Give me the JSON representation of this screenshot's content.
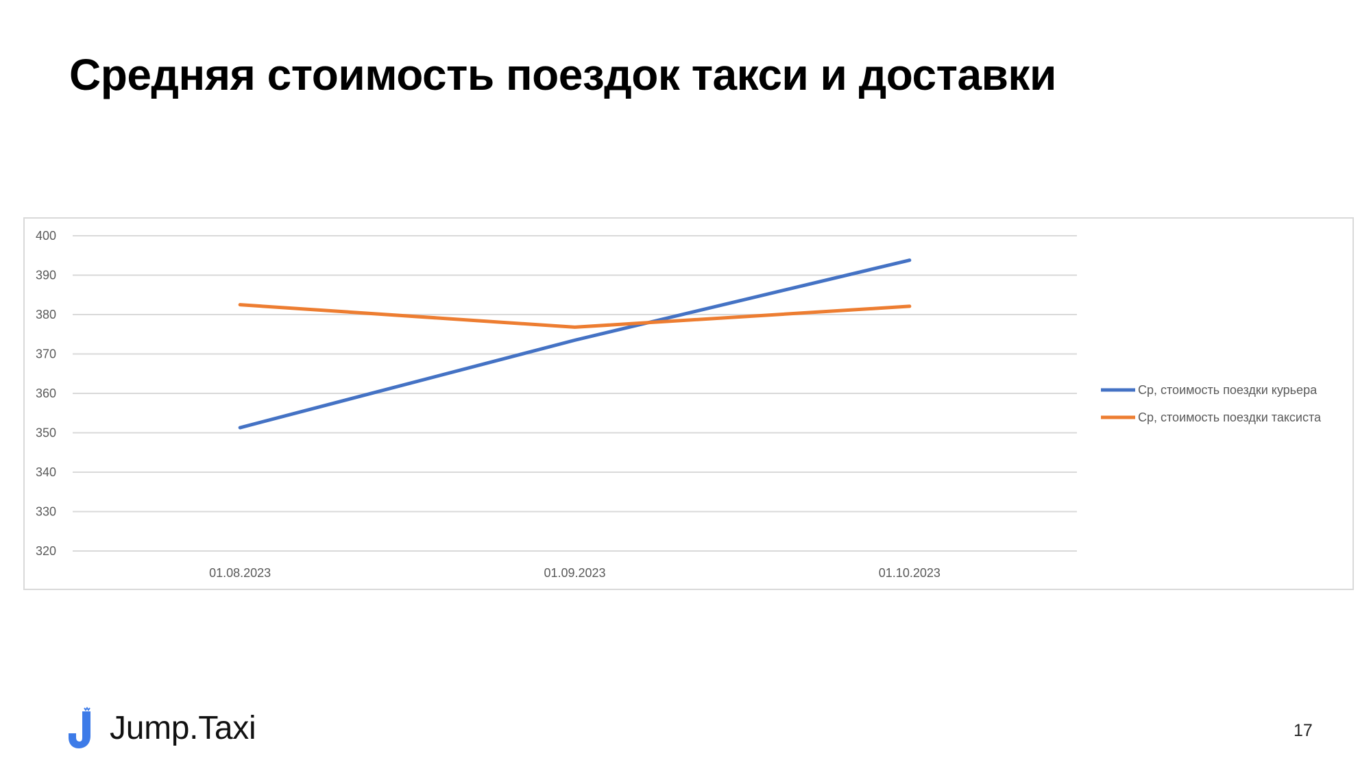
{
  "slide": {
    "title": "Средняя стоимость поездок такси и доставки",
    "page_number": "17"
  },
  "brand": {
    "name": "Jump.Taxi",
    "logo_icon": "jump-logo-icon",
    "logo_color": "#3d7be8"
  },
  "chart_data": {
    "type": "line",
    "title": "",
    "xlabel": "",
    "ylabel": "",
    "categories": [
      "01.08.2023",
      "01.09.2023",
      "01.10.2023"
    ],
    "ylim": [
      320,
      400
    ],
    "yticks": [
      "320",
      "330",
      "340",
      "350",
      "360",
      "370",
      "380",
      "390",
      "400"
    ],
    "grid": true,
    "legend_position": "right",
    "series": [
      {
        "name": "Ср, стоимость поездки курьера",
        "values": [
          351.3,
          373.5,
          393.8
        ],
        "color": "#4472c4"
      },
      {
        "name": "Ср, стоимость поездки таксиста",
        "values": [
          382.5,
          376.8,
          382.1
        ],
        "color": "#ed7d31"
      }
    ]
  }
}
